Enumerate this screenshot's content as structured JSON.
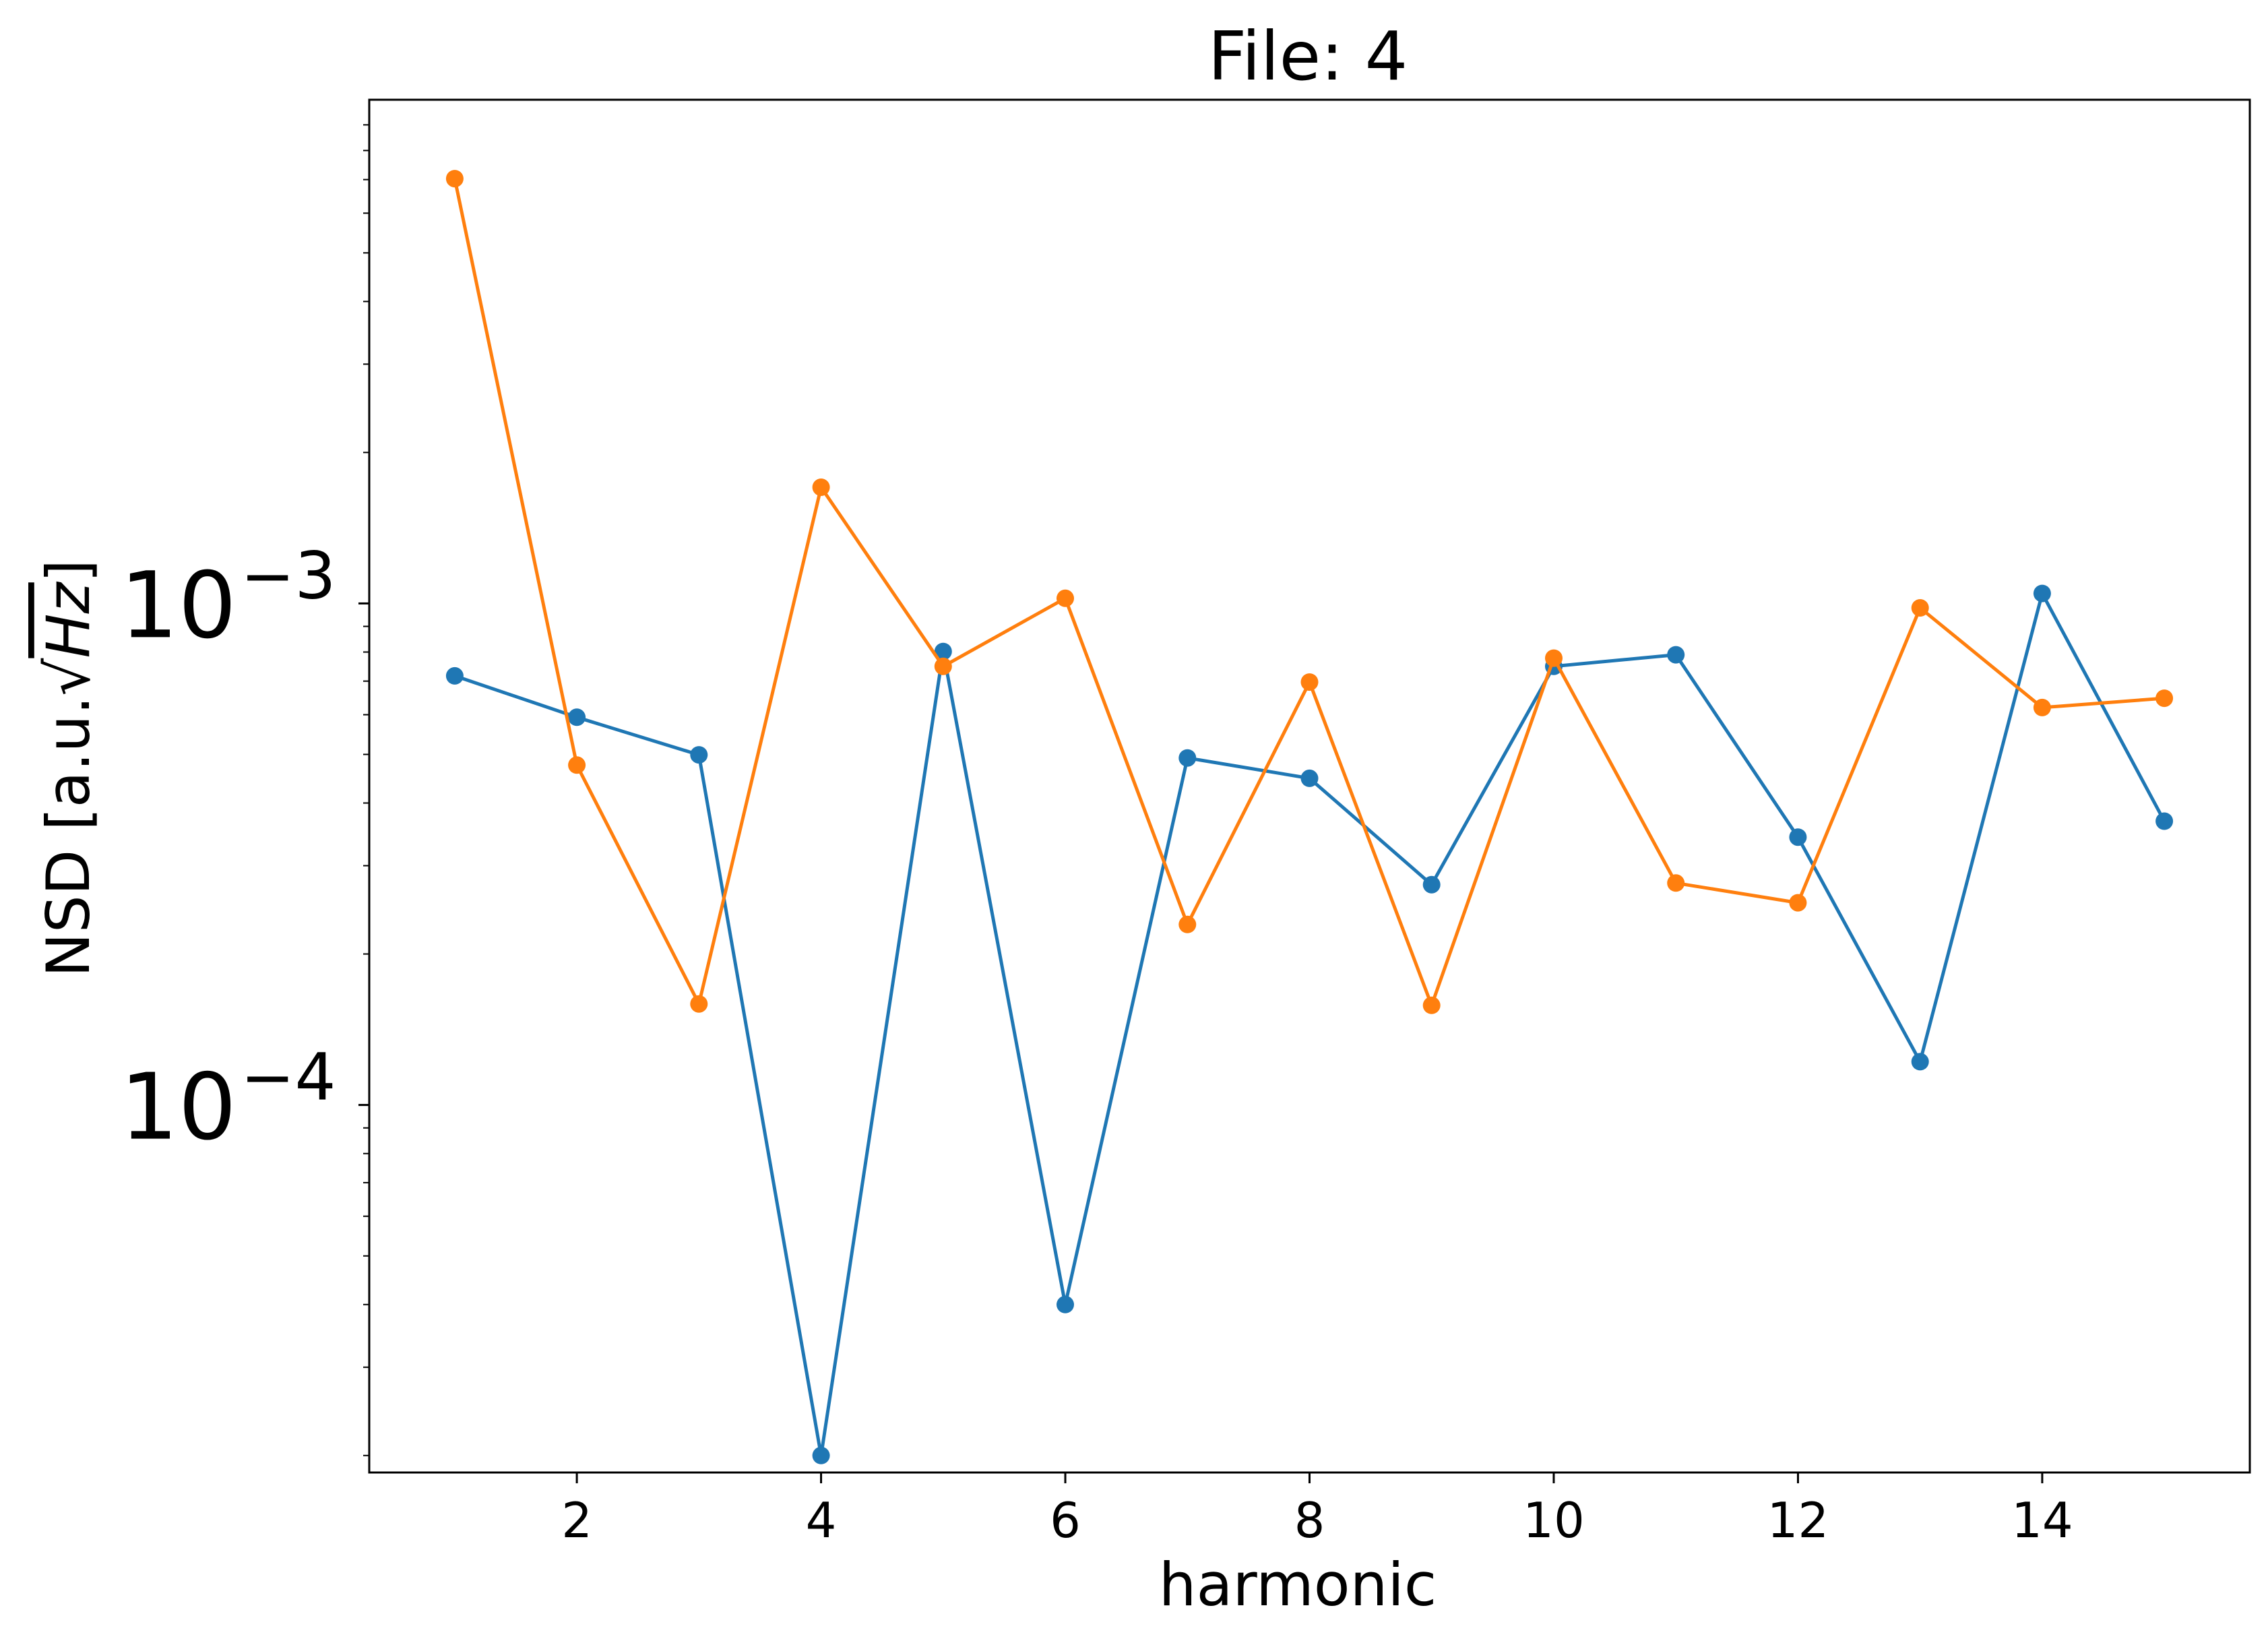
{
  "chart_data": {
    "type": "line",
    "title": "File: 4",
    "xlabel": "harmonic",
    "ylabel": {
      "prefix": "NSD [a.u.",
      "radical": "√",
      "radicand": "Hz",
      "suffix": "]"
    },
    "yscale": "log",
    "xlim": [
      0.3,
      15.7
    ],
    "ylim": [
      1.85e-05,
      0.0101
    ],
    "x_ticks": [
      2,
      4,
      6,
      8,
      10,
      12,
      14
    ],
    "y_ticks": [
      {
        "value": 0.0001,
        "base": "10",
        "exponent": "−4"
      },
      {
        "value": 0.001,
        "base": "10",
        "exponent": "−3"
      }
    ],
    "grid": false,
    "series": [
      {
        "color": "#1f77b4",
        "x": [
          1,
          2,
          3,
          4,
          5,
          6,
          7,
          8,
          9,
          10,
          11,
          12,
          13,
          14,
          15
        ],
        "y": [
          0.000717,
          0.000593,
          0.000499,
          2e-05,
          0.000802,
          4e-05,
          0.000492,
          0.000448,
          0.000275,
          0.000749,
          0.00079,
          0.000342,
          0.000122,
          0.001047,
          0.000368
        ]
      },
      {
        "color": "#ff7f0e",
        "x": [
          1,
          2,
          3,
          4,
          5,
          6,
          7,
          8,
          9,
          10,
          11,
          12,
          13,
          14,
          15
        ],
        "y": [
          0.00703,
          0.000476,
          0.000159,
          0.001705,
          0.000749,
          0.001024,
          0.000229,
          0.000697,
          0.000158,
          0.000778,
          0.000277,
          0.000253,
          0.00098,
          0.00062,
          0.000647
        ]
      }
    ]
  }
}
